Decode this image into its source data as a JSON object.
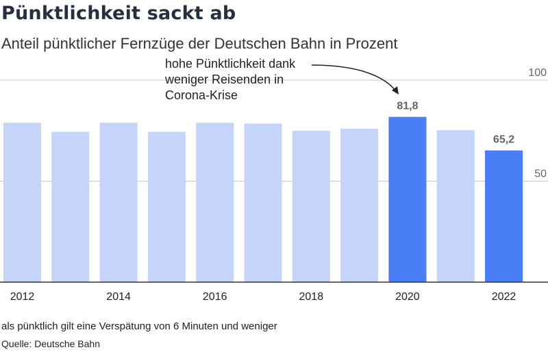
{
  "title": "Pünktlichkeit sackt ab",
  "subtitle": "Anteil pünktlicher Fernzüge der Deutschen Bahn in Prozent",
  "annotation": "hohe Pünktlichkeit dank\nweniger Reisenden in\nCorona-Krise",
  "footnote": "als pünktlich gilt eine Verspätung von 6 Minuten und weniger",
  "source": "Quelle: Deutsche Bahn",
  "colors": {
    "bar": "#c5d5fa",
    "highlight": "#4a7ef7",
    "grid": "#c8c8c8",
    "label": "#666666"
  },
  "chart_data": {
    "type": "bar",
    "categories": [
      "2012",
      "2013",
      "2014",
      "2015",
      "2016",
      "2017",
      "2018",
      "2019",
      "2020",
      "2021",
      "2022"
    ],
    "values": [
      78.9,
      74.4,
      78.9,
      74.4,
      78.9,
      78.5,
      74.9,
      75.9,
      81.8,
      75.2,
      65.2
    ],
    "highlighted": [
      "2020",
      "2022"
    ],
    "data_labels": {
      "2020": "81,8",
      "2022": "65,2"
    },
    "x_tick_labels": [
      "2012",
      "2014",
      "2016",
      "2018",
      "2020",
      "2022"
    ],
    "y_ticks": [
      50,
      100
    ],
    "ylim": [
      0,
      100
    ],
    "grid": true,
    "xlabel": "",
    "ylabel": ""
  }
}
